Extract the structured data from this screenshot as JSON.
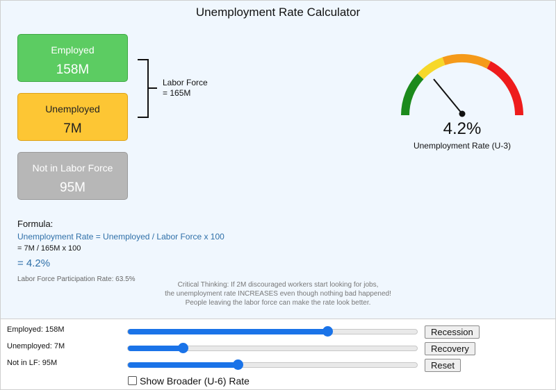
{
  "title": "Unemployment Rate Calculator",
  "cards": {
    "employed": {
      "label": "Employed",
      "value": "158M",
      "color": "#5ccc62"
    },
    "unemployed": {
      "label": "Unemployed",
      "value": "7M",
      "color": "#fdc634"
    },
    "not_in_lf": {
      "label": "Not in Labor Force",
      "value": "95M",
      "color": "#b7b7b7"
    }
  },
  "labor_force": {
    "line1": "Labor Force",
    "line2": "= 165M"
  },
  "gauge": {
    "value": 4.2,
    "display": "4.2%",
    "caption": "Unemployment Rate (U-3)",
    "segments_colors": [
      "#1c8a1c",
      "#f6d82a",
      "#f59a1a",
      "#ee1c1c"
    ]
  },
  "formula": {
    "heading": "Formula:",
    "line1": "Unemployment Rate = Unemployed / Labor Force x 100",
    "line2": "= 7M / 165M x 100",
    "result": "= 4.2%",
    "participation": "Labor Force Participation Rate: 63.5%"
  },
  "critical_thinking": {
    "line1": "Critical Thinking: If 2M discouraged workers start looking for jobs,",
    "line2": "the unemployment rate INCREASES even though nothing bad happened!",
    "line3": "People leaving the labor force can make the rate look better."
  },
  "controls": {
    "employed": {
      "label": "Employed: 158M",
      "level": 0.69
    },
    "unemployed": {
      "label": "Unemployed: 7M",
      "level": 0.19
    },
    "not_in_lf": {
      "label": "Not in LF: 95M",
      "level": 0.38
    },
    "buttons": {
      "recession": "Recession",
      "recovery": "Recovery",
      "reset": "Reset"
    },
    "checkbox": {
      "label": "Show Broader (U-6) Rate",
      "checked": false
    }
  }
}
